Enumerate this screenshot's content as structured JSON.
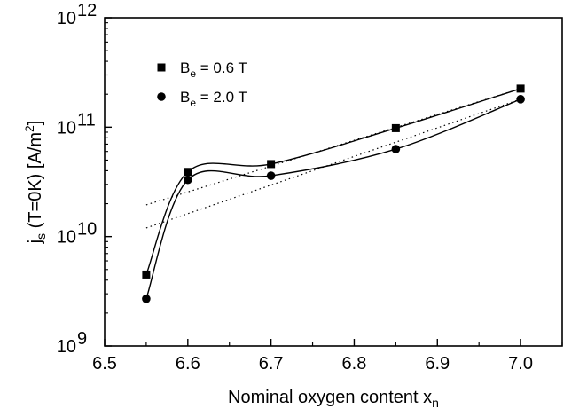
{
  "chart_data": {
    "type": "scatter",
    "xlabel": "Nominal oxygen content  x",
    "xlabel_sub": "n",
    "ylabel": {
      "p1": "j",
      "p1_sub": "s",
      "p2": " (T=0K) [A/m",
      "p2_sup": "2",
      "p3": "]"
    },
    "xlim": [
      6.5,
      7.05
    ],
    "ylim": [
      1000000000.0,
      1000000000000.0
    ],
    "yscale": "log",
    "x_ticks": [
      {
        "value": 6.5,
        "label": "6.5"
      },
      {
        "value": 6.6,
        "label": "6.6"
      },
      {
        "value": 6.7,
        "label": "6.7"
      },
      {
        "value": 6.8,
        "label": "6.8"
      },
      {
        "value": 6.9,
        "label": "6.9"
      },
      {
        "value": 7.0,
        "label": "7.0"
      }
    ],
    "y_ticks": [
      {
        "value": 1000000000.0,
        "base": "10",
        "exp": "9"
      },
      {
        "value": 10000000000.0,
        "base": "10",
        "exp": "10"
      },
      {
        "value": 100000000000.0,
        "base": "10",
        "exp": "11"
      },
      {
        "value": 1000000000000.0,
        "base": "10",
        "exp": "12"
      }
    ],
    "series": [
      {
        "name": "B_e = 0.6 T",
        "legend": {
          "pre": "B",
          "sub": "e",
          "post": " = 0.6 T"
        },
        "marker": "square",
        "x": [
          6.55,
          6.6,
          6.7,
          6.85,
          7.0
        ],
        "y": [
          4500000000.0,
          39000000000.0,
          46000000000.0,
          98000000000.0,
          225000000000.0
        ],
        "fit_line": {
          "from": [
            6.55,
            19500000000.0
          ],
          "to": [
            7.0,
            225000000000.0
          ]
        }
      },
      {
        "name": "B_e = 2.0 T",
        "legend": {
          "pre": "B",
          "sub": "e",
          "post": " = 2.0 T"
        },
        "marker": "circle",
        "x": [
          6.55,
          6.6,
          6.7,
          6.85,
          7.0
        ],
        "y": [
          2700000000.0,
          33000000000.0,
          36000000000.0,
          63000000000.0,
          180000000000.0
        ],
        "fit_line": {
          "from": [
            6.55,
            12000000000.0
          ],
          "to": [
            7.0,
            180000000000.0
          ]
        }
      }
    ],
    "legend_position": "top-left",
    "grid": false
  }
}
